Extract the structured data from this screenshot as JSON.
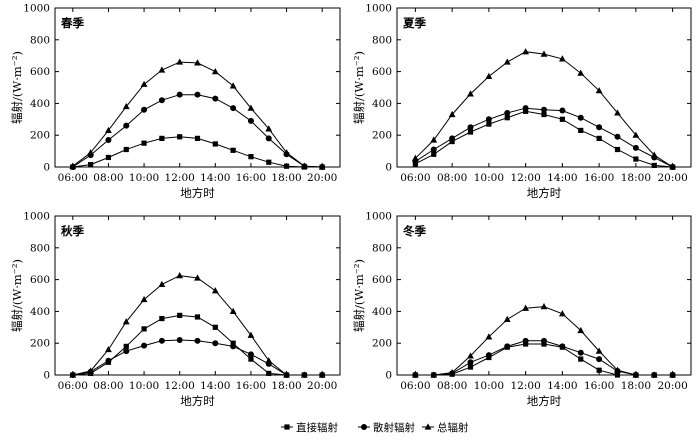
{
  "chart_data": [
    {
      "type": "line",
      "title": "春季",
      "xlabel": "地方时",
      "ylabel": "辐射/(W·m⁻²)",
      "xlim": [
        5,
        21
      ],
      "ylim": [
        0,
        1000
      ],
      "xticks": [
        "06:00",
        "08:00",
        "10:00",
        "12:00",
        "14:00",
        "16:00",
        "18:00",
        "20:00"
      ],
      "yticks": [
        "0",
        "200",
        "400",
        "600",
        "800",
        "1000"
      ],
      "x": [
        6,
        7,
        8,
        9,
        10,
        11,
        12,
        13,
        14,
        15,
        16,
        17,
        18,
        19,
        20
      ],
      "series": [
        {
          "name": "直接辐射",
          "marker": "square",
          "values": [
            0,
            15,
            60,
            110,
            150,
            180,
            190,
            180,
            145,
            105,
            65,
            30,
            5,
            0,
            0
          ]
        },
        {
          "name": "散射辐射",
          "marker": "circle",
          "values": [
            0,
            75,
            170,
            260,
            360,
            420,
            455,
            455,
            430,
            370,
            290,
            180,
            80,
            5,
            0
          ]
        },
        {
          "name": "总辐射",
          "marker": "triangle",
          "values": [
            5,
            90,
            230,
            380,
            520,
            610,
            660,
            655,
            600,
            510,
            370,
            240,
            90,
            5,
            0
          ]
        }
      ]
    },
    {
      "type": "line",
      "title": "夏季",
      "xlabel": "地方时",
      "ylabel": "辐射/(W·m⁻²)",
      "xlim": [
        5,
        21
      ],
      "ylim": [
        0,
        1000
      ],
      "xticks": [
        "06:00",
        "08:00",
        "10:00",
        "12:00",
        "14:00",
        "16:00",
        "18:00",
        "20:00"
      ],
      "yticks": [
        "0",
        "200",
        "400",
        "600",
        "800",
        "1000"
      ],
      "x": [
        6,
        7,
        8,
        9,
        10,
        11,
        12,
        13,
        14,
        15,
        16,
        17,
        18,
        19,
        20
      ],
      "series": [
        {
          "name": "直接辐射",
          "marker": "square",
          "values": [
            20,
            80,
            160,
            220,
            270,
            310,
            350,
            330,
            300,
            230,
            180,
            110,
            50,
            10,
            0
          ]
        },
        {
          "name": "散射辐射",
          "marker": "circle",
          "values": [
            35,
            110,
            180,
            250,
            300,
            340,
            370,
            360,
            355,
            310,
            250,
            190,
            120,
            60,
            0
          ]
        },
        {
          "name": "总辐射",
          "marker": "triangle",
          "values": [
            55,
            170,
            330,
            460,
            570,
            660,
            725,
            710,
            680,
            590,
            480,
            340,
            200,
            75,
            0
          ]
        }
      ]
    },
    {
      "type": "line",
      "title": "秋季",
      "xlabel": "地方时",
      "ylabel": "辐射/(W·m⁻²)",
      "xlim": [
        5,
        21
      ],
      "ylim": [
        0,
        1000
      ],
      "xticks": [
        "06:00",
        "08:00",
        "10:00",
        "12:00",
        "14:00",
        "16:00",
        "18:00",
        "20:00"
      ],
      "yticks": [
        "0",
        "200",
        "400",
        "600",
        "800",
        "1000"
      ],
      "x": [
        6,
        7,
        8,
        9,
        10,
        11,
        12,
        13,
        14,
        15,
        16,
        17,
        18,
        19,
        20
      ],
      "series": [
        {
          "name": "直接辐射",
          "marker": "square",
          "values": [
            0,
            10,
            80,
            180,
            290,
            355,
            375,
            365,
            300,
            200,
            100,
            10,
            0,
            0,
            0
          ]
        },
        {
          "name": "散射辐射",
          "marker": "circle",
          "values": [
            0,
            20,
            90,
            150,
            185,
            215,
            220,
            215,
            200,
            180,
            130,
            70,
            0,
            0,
            0
          ]
        },
        {
          "name": "总辐射",
          "marker": "triangle",
          "values": [
            0,
            25,
            160,
            335,
            475,
            570,
            625,
            610,
            530,
            400,
            250,
            90,
            0,
            0,
            0
          ]
        }
      ]
    },
    {
      "type": "line",
      "title": "冬季",
      "xlabel": "地方时",
      "ylabel": "辐射/(W·m⁻²)",
      "xlim": [
        5,
        21
      ],
      "ylim": [
        0,
        1000
      ],
      "xticks": [
        "06:00",
        "08:00",
        "10:00",
        "12:00",
        "14:00",
        "16:00",
        "18:00",
        "20:00"
      ],
      "yticks": [
        "0",
        "200",
        "400",
        "600",
        "800",
        "1000"
      ],
      "x": [
        6,
        7,
        8,
        9,
        10,
        11,
        12,
        13,
        14,
        15,
        16,
        17,
        18,
        19,
        20
      ],
      "series": [
        {
          "name": "直接辐射",
          "marker": "square",
          "values": [
            0,
            0,
            5,
            50,
            110,
            175,
            195,
            195,
            175,
            100,
            30,
            0,
            0,
            0,
            0
          ]
        },
        {
          "name": "散射辐射",
          "marker": "circle",
          "values": [
            0,
            0,
            10,
            80,
            125,
            180,
            215,
            215,
            180,
            140,
            100,
            25,
            0,
            0,
            0
          ]
        },
        {
          "name": "总辐射",
          "marker": "triangle",
          "values": [
            0,
            0,
            15,
            120,
            240,
            350,
            420,
            430,
            385,
            280,
            150,
            30,
            0,
            0,
            0
          ]
        }
      ]
    }
  ],
  "legend": {
    "placement": "bottom-center",
    "items": [
      {
        "label": "直接辐射",
        "marker": "square"
      },
      {
        "label": "散射辐射",
        "marker": "circle"
      },
      {
        "label": "总辐射",
        "marker": "triangle"
      }
    ]
  }
}
